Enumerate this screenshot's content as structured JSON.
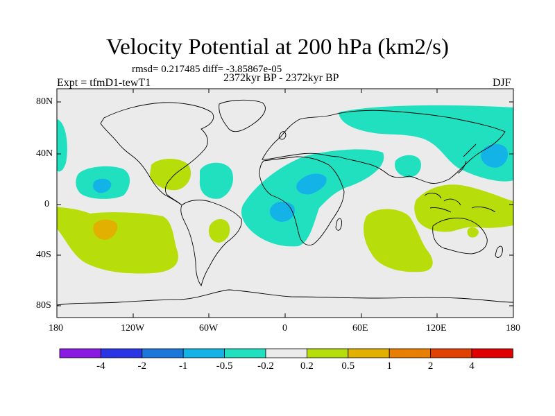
{
  "title": "Velocity Potential at 200 hPa (km2/s)",
  "stats_line": "rmsd= 0.217485 diff= -3.85867e-05",
  "experiment_label": "Expt = tfmD1-tewT1",
  "period_label": "2372kyr BP - 2372kyr BP",
  "season_label": "DJF",
  "map": {
    "lat_ticks": [
      "80N",
      "40N",
      "0",
      "40S",
      "80S"
    ],
    "lon_ticks": [
      "180",
      "120W",
      "60W",
      "0",
      "60E",
      "120E",
      "180"
    ],
    "background_color": "#ebebeb",
    "regions_negative": [
      {
        "name": "north-pacific-west",
        "level": "-0.5"
      },
      {
        "name": "east-asia-arctic",
        "level": "-0.5"
      },
      {
        "name": "east-pacific",
        "level": "-0.5"
      },
      {
        "name": "east-pacific-core",
        "level": "-1"
      },
      {
        "name": "caribbean",
        "level": "-0.5"
      },
      {
        "name": "africa-atlantic",
        "level": "-0.5"
      },
      {
        "name": "africa-core-north",
        "level": "-1"
      },
      {
        "name": "africa-core-south",
        "level": "-1"
      },
      {
        "name": "india",
        "level": "-0.5"
      },
      {
        "name": "north-pacific-east-core",
        "level": "-1"
      }
    ],
    "regions_positive": [
      {
        "name": "south-pacific",
        "level": "0.2"
      },
      {
        "name": "south-pacific-core",
        "level": "0.5"
      },
      {
        "name": "gulf-of-mexico",
        "level": "0.2"
      },
      {
        "name": "south-america",
        "level": "0.2"
      },
      {
        "name": "indian-ocean",
        "level": "0.2"
      },
      {
        "name": "maritime-continent",
        "level": "0.2"
      }
    ]
  },
  "colorbar": {
    "labels": [
      "-4",
      "-2",
      "-1",
      "-0.5",
      "-0.2",
      "0.2",
      "0.5",
      "1",
      "2",
      "4"
    ],
    "colors": [
      "#8a1be2",
      "#2a36e6",
      "#1a78dc",
      "#13b3e8",
      "#20e0c0",
      "#ebebeb",
      "#b7de0a",
      "#e2b000",
      "#e87f00",
      "#e04000",
      "#e00000"
    ]
  }
}
